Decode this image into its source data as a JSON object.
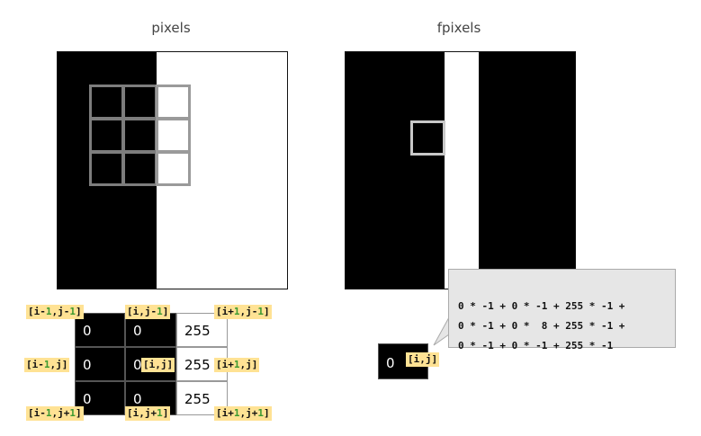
{
  "left_title": "pixels",
  "right_title": "fpixels",
  "grid_values": [
    [
      "0",
      "0",
      "255"
    ],
    [
      "0",
      "0",
      "255"
    ],
    [
      "0",
      "0",
      "255"
    ]
  ],
  "labels": {
    "top_left": {
      "pre": "[i-",
      "n1": "1",
      "mid": ",j-",
      "n2": "1",
      "post": "]"
    },
    "top_mid": {
      "pre": "[i,j-",
      "n1": "1",
      "post": "]"
    },
    "top_right": {
      "pre": "[i+",
      "n1": "1",
      "mid": ",j-",
      "n2": "1",
      "post": "]"
    },
    "mid_left": {
      "pre": "[i-",
      "n1": "1",
      "post": ",j]"
    },
    "center": {
      "text": "[i,j]"
    },
    "mid_right": {
      "pre": "[i+",
      "n1": "1",
      "post": ",j]"
    },
    "bottom_left": {
      "pre": "[i-",
      "n1": "1",
      "mid": ",j+",
      "n2": "1",
      "post": "]"
    },
    "bottom_mid": {
      "pre": "[i,j+",
      "n1": "1",
      "post": "]"
    },
    "bottom_right": {
      "pre": "[i+",
      "n1": "1",
      "mid": ",j+",
      "n2": "1",
      "post": "]"
    }
  },
  "equation_lines": [
    "0 * -1 + 0 * -1 + 255 * -1 +",
    "0 * -1 + 0 *  8 + 255 * -1 +",
    "0 * -1 + 0 * -1 + 255 * -1"
  ],
  "output_value": "0",
  "output_label": "[i,j]",
  "colors": {
    "tag_bg": "#ffe294",
    "tag_number": "#3b9a30",
    "kernel_border": "#9a9a9a",
    "callout_bg": "#e6e6e6"
  }
}
